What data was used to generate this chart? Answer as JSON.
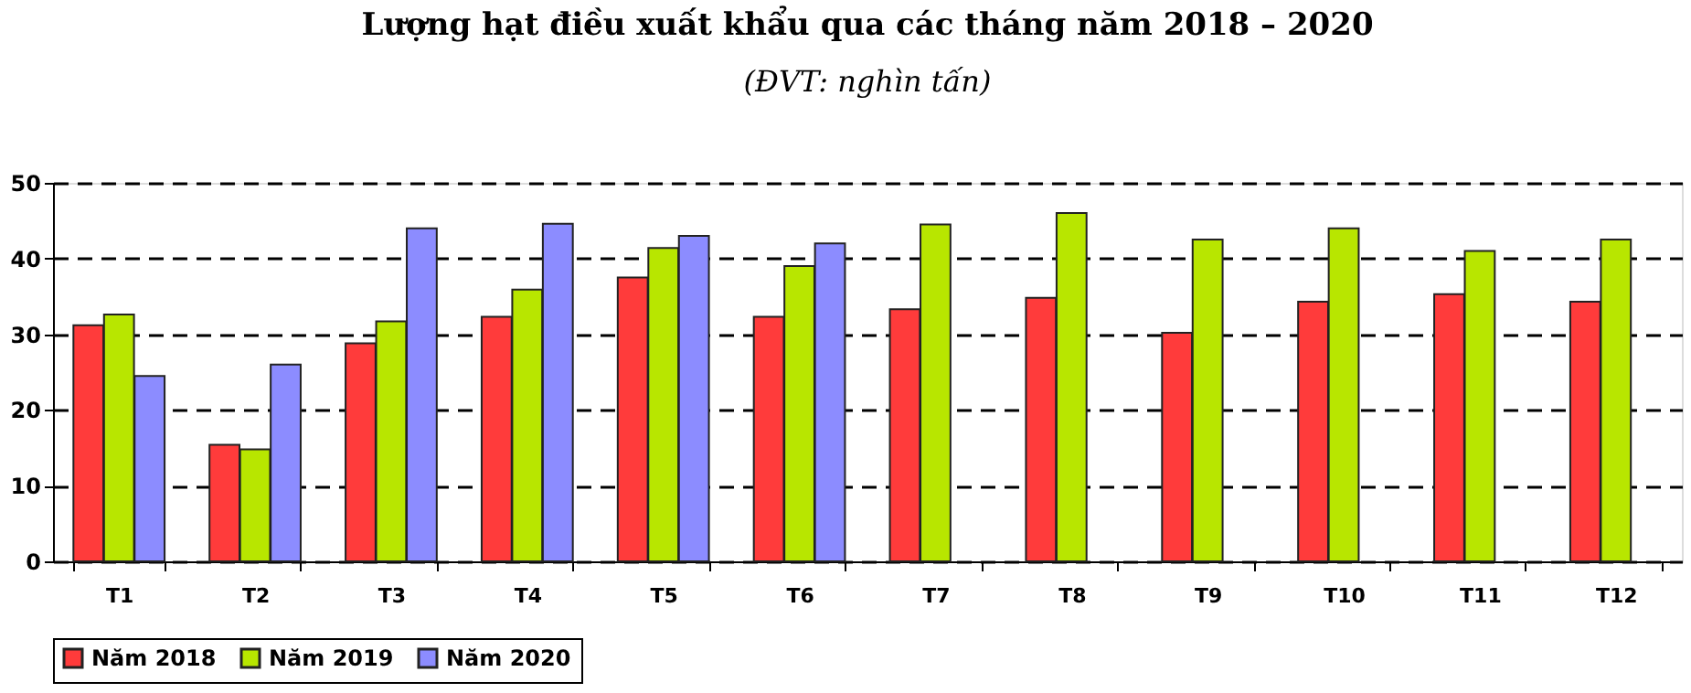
{
  "chart_data": {
    "type": "bar",
    "title": "Lượng hạt điều xuất khẩu qua các tháng năm 2018 – 2020",
    "subtitle": "(ĐVT: nghìn tấn)",
    "categories": [
      "T1",
      "T2",
      "T3",
      "T4",
      "T5",
      "T6",
      "T7",
      "T8",
      "T9",
      "T10",
      "T11",
      "T12"
    ],
    "series": [
      {
        "name": "Năm 2018",
        "color": "#ff3b3b",
        "values": [
          31.2,
          15.4,
          28.8,
          32.3,
          37.5,
          32.3,
          33.3,
          34.8,
          30.2,
          34.3,
          35.3,
          34.3
        ]
      },
      {
        "name": "Năm 2019",
        "color": "#b8e600",
        "values": [
          32.6,
          14.8,
          31.7,
          35.9,
          41.4,
          39.0,
          44.5,
          46.0,
          42.5,
          44.0,
          41.0,
          42.5
        ]
      },
      {
        "name": "Năm 2020",
        "color": "#8c8cff",
        "values": [
          24.5,
          26.0,
          44.0,
          44.6,
          43.0,
          42.0,
          null,
          null,
          null,
          null,
          null,
          null
        ]
      }
    ],
    "ylim": [
      0,
      50
    ],
    "yticks": [
      0,
      10,
      20,
      30,
      40,
      50
    ],
    "grid": "y",
    "legend": "bottom"
  }
}
